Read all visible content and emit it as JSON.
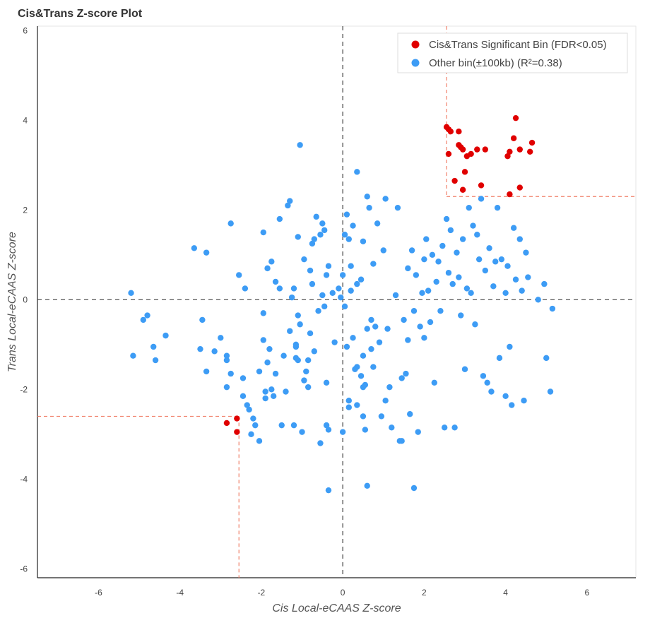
{
  "chart_data": {
    "type": "scatter",
    "title": "Cis&Trans Z-score Plot",
    "xlabel": "Cis Local-eCAAS Z-score",
    "ylabel": "Trans Local-eCAAS Z-score",
    "xlim": [
      -7.5,
      7.2
    ],
    "ylim": [
      -6.2,
      6.1
    ],
    "xticks": [
      "-6",
      "-4",
      "-2",
      "0",
      "2",
      "4",
      "6"
    ],
    "yticks": [
      "6",
      "4",
      "2",
      "0",
      "-2",
      "-4",
      "-6"
    ],
    "grid": false,
    "legend_position": "top-right",
    "thresholds": {
      "upper_x": 2.55,
      "upper_y": 2.3,
      "lower_x": -2.55,
      "lower_y": -2.6
    },
    "series": [
      {
        "name": "Cis&Trans Significant Bin (FDR<0.05)",
        "color": "#e00000",
        "points": [
          [
            2.55,
            3.85
          ],
          [
            2.6,
            3.8
          ],
          [
            2.65,
            3.75
          ],
          [
            2.85,
            3.75
          ],
          [
            2.6,
            3.25
          ],
          [
            2.85,
            3.45
          ],
          [
            2.95,
            3.35
          ],
          [
            3.05,
            3.2
          ],
          [
            3.15,
            3.25
          ],
          [
            3.3,
            3.35
          ],
          [
            3.5,
            3.35
          ],
          [
            2.9,
            3.4
          ],
          [
            2.75,
            2.65
          ],
          [
            3.0,
            2.85
          ],
          [
            2.95,
            2.45
          ],
          [
            3.4,
            2.55
          ],
          [
            4.05,
            3.2
          ],
          [
            4.1,
            3.3
          ],
          [
            4.2,
            3.6
          ],
          [
            4.25,
            4.05
          ],
          [
            4.35,
            3.35
          ],
          [
            4.6,
            3.3
          ],
          [
            4.65,
            3.5
          ],
          [
            4.1,
            2.35
          ],
          [
            4.35,
            2.5
          ],
          [
            -2.85,
            -2.75
          ],
          [
            -2.6,
            -2.65
          ],
          [
            -2.6,
            -2.95
          ]
        ]
      },
      {
        "name": "Other bin(±100kb) (R²=0.38)",
        "color": "#3d9cf5",
        "points": [
          [
            -5.2,
            0.15
          ],
          [
            -5.15,
            -1.25
          ],
          [
            -4.9,
            -0.45
          ],
          [
            -4.8,
            -0.35
          ],
          [
            -4.65,
            -1.05
          ],
          [
            -4.6,
            -1.35
          ],
          [
            -4.35,
            -0.8
          ],
          [
            -3.65,
            1.15
          ],
          [
            -3.5,
            -1.1
          ],
          [
            -3.45,
            -0.45
          ],
          [
            -3.35,
            1.05
          ],
          [
            -3.35,
            -1.6
          ],
          [
            -3.15,
            -1.15
          ],
          [
            -3.0,
            -0.85
          ],
          [
            -2.85,
            -1.25
          ],
          [
            -2.85,
            -1.35
          ],
          [
            -2.85,
            -1.95
          ],
          [
            -2.75,
            1.7
          ],
          [
            -2.75,
            -1.65
          ],
          [
            -2.55,
            0.55
          ],
          [
            -2.45,
            -1.75
          ],
          [
            -2.45,
            -2.15
          ],
          [
            -2.4,
            0.25
          ],
          [
            -2.35,
            -2.35
          ],
          [
            -2.3,
            -2.45
          ],
          [
            -2.25,
            -3.0
          ],
          [
            -2.2,
            -2.65
          ],
          [
            -2.15,
            -2.8
          ],
          [
            -2.05,
            -1.6
          ],
          [
            -1.95,
            1.5
          ],
          [
            -1.95,
            -0.3
          ],
          [
            -1.95,
            -0.9
          ],
          [
            -1.9,
            -2.05
          ],
          [
            -1.9,
            -2.2
          ],
          [
            -1.85,
            0.7
          ],
          [
            -1.85,
            -1.4
          ],
          [
            -1.8,
            -1.1
          ],
          [
            -1.75,
            0.85
          ],
          [
            -1.75,
            -2.0
          ],
          [
            -1.7,
            -2.15
          ],
          [
            -1.65,
            0.4
          ],
          [
            -1.65,
            -1.65
          ],
          [
            -1.55,
            1.8
          ],
          [
            -1.55,
            0.25
          ],
          [
            -1.45,
            -1.25
          ],
          [
            -1.4,
            -2.05
          ],
          [
            -1.35,
            2.1
          ],
          [
            -1.3,
            2.2
          ],
          [
            -1.3,
            -0.7
          ],
          [
            -1.25,
            0.05
          ],
          [
            -1.2,
            0.25
          ],
          [
            -1.2,
            -2.8
          ],
          [
            -1.15,
            -1.05
          ],
          [
            -1.15,
            -1.3
          ],
          [
            -1.1,
            1.4
          ],
          [
            -1.1,
            -0.35
          ],
          [
            -1.1,
            -1.35
          ],
          [
            -1.05,
            3.45
          ],
          [
            -1.05,
            -0.55
          ],
          [
            -1.0,
            -2.95
          ],
          [
            -0.95,
            0.9
          ],
          [
            -0.95,
            -1.8
          ],
          [
            -0.9,
            -1.6
          ],
          [
            -0.85,
            -1.35
          ],
          [
            -0.85,
            -1.95
          ],
          [
            -0.8,
            0.65
          ],
          [
            -0.8,
            -0.75
          ],
          [
            -0.75,
            1.25
          ],
          [
            -0.75,
            0.35
          ],
          [
            -0.7,
            1.35
          ],
          [
            -0.7,
            -1.15
          ],
          [
            -0.65,
            1.85
          ],
          [
            -0.6,
            -0.25
          ],
          [
            -0.55,
            1.45
          ],
          [
            -0.55,
            -3.2
          ],
          [
            -0.5,
            1.7
          ],
          [
            -0.5,
            0.1
          ],
          [
            -0.45,
            1.55
          ],
          [
            -0.45,
            -0.15
          ],
          [
            -0.4,
            0.55
          ],
          [
            -0.4,
            -2.8
          ],
          [
            -0.35,
            0.75
          ],
          [
            -0.35,
            -2.9
          ],
          [
            -0.35,
            -4.25
          ],
          [
            -0.25,
            0.15
          ],
          [
            -0.2,
            -0.95
          ],
          [
            -0.1,
            0.25
          ],
          [
            -0.05,
            0.05
          ],
          [
            0.0,
            0.55
          ],
          [
            0.0,
            -2.95
          ],
          [
            0.05,
            1.45
          ],
          [
            0.05,
            -0.15
          ],
          [
            0.1,
            1.9
          ],
          [
            0.1,
            -1.05
          ],
          [
            0.15,
            1.35
          ],
          [
            0.15,
            -2.4
          ],
          [
            0.2,
            0.75
          ],
          [
            0.2,
            0.2
          ],
          [
            0.25,
            1.65
          ],
          [
            0.25,
            -0.85
          ],
          [
            0.3,
            -1.55
          ],
          [
            0.35,
            2.85
          ],
          [
            0.35,
            0.35
          ],
          [
            0.35,
            -2.35
          ],
          [
            0.45,
            0.45
          ],
          [
            0.45,
            -1.7
          ],
          [
            0.5,
            1.3
          ],
          [
            0.5,
            -1.25
          ],
          [
            0.5,
            -1.95
          ],
          [
            0.5,
            -2.6
          ],
          [
            0.55,
            -2.9
          ],
          [
            0.6,
            2.3
          ],
          [
            0.6,
            -0.65
          ],
          [
            0.6,
            -4.15
          ],
          [
            0.65,
            2.05
          ],
          [
            0.7,
            -0.45
          ],
          [
            0.7,
            -1.1
          ],
          [
            0.75,
            -1.5
          ],
          [
            0.75,
            0.8
          ],
          [
            0.8,
            -0.6
          ],
          [
            0.85,
            1.7
          ],
          [
            0.9,
            -0.95
          ],
          [
            0.95,
            -2.6
          ],
          [
            1.0,
            1.1
          ],
          [
            1.05,
            2.25
          ],
          [
            1.05,
            -2.25
          ],
          [
            1.1,
            -0.65
          ],
          [
            1.15,
            -1.95
          ],
          [
            1.2,
            -2.85
          ],
          [
            1.3,
            0.1
          ],
          [
            1.35,
            2.05
          ],
          [
            1.4,
            -3.15
          ],
          [
            1.45,
            -1.75
          ],
          [
            1.5,
            -0.45
          ],
          [
            1.55,
            -1.65
          ],
          [
            1.6,
            0.7
          ],
          [
            1.6,
            -0.9
          ],
          [
            1.65,
            -2.55
          ],
          [
            1.7,
            1.1
          ],
          [
            1.75,
            -0.25
          ],
          [
            1.8,
            0.55
          ],
          [
            1.85,
            -2.95
          ],
          [
            1.9,
            -0.6
          ],
          [
            1.95,
            0.15
          ],
          [
            2.0,
            0.9
          ],
          [
            2.05,
            1.35
          ],
          [
            2.1,
            0.2
          ],
          [
            2.15,
            -0.5
          ],
          [
            2.2,
            1.0
          ],
          [
            2.25,
            -1.85
          ],
          [
            2.3,
            0.4
          ],
          [
            2.35,
            0.85
          ],
          [
            2.4,
            -0.25
          ],
          [
            2.45,
            1.2
          ],
          [
            2.5,
            -2.85
          ],
          [
            2.55,
            1.8
          ],
          [
            2.6,
            0.6
          ],
          [
            2.65,
            1.55
          ],
          [
            2.7,
            0.35
          ],
          [
            2.75,
            -2.85
          ],
          [
            2.8,
            1.05
          ],
          [
            2.85,
            0.5
          ],
          [
            2.9,
            -0.35
          ],
          [
            2.95,
            1.35
          ],
          [
            3.0,
            -1.55
          ],
          [
            3.05,
            0.25
          ],
          [
            3.1,
            2.05
          ],
          [
            3.15,
            0.15
          ],
          [
            3.2,
            1.65
          ],
          [
            3.25,
            -0.55
          ],
          [
            3.3,
            1.45
          ],
          [
            3.35,
            0.9
          ],
          [
            3.4,
            2.25
          ],
          [
            3.45,
            -1.7
          ],
          [
            3.5,
            0.65
          ],
          [
            3.55,
            -1.85
          ],
          [
            3.6,
            1.15
          ],
          [
            3.65,
            -2.05
          ],
          [
            3.7,
            0.3
          ],
          [
            3.75,
            0.85
          ],
          [
            3.8,
            2.05
          ],
          [
            3.85,
            -1.3
          ],
          [
            3.9,
            0.9
          ],
          [
            4.0,
            0.15
          ],
          [
            4.0,
            -2.15
          ],
          [
            4.05,
            0.75
          ],
          [
            4.1,
            -1.05
          ],
          [
            4.15,
            -2.35
          ],
          [
            4.2,
            1.6
          ],
          [
            4.25,
            0.45
          ],
          [
            4.35,
            1.35
          ],
          [
            4.4,
            0.2
          ],
          [
            4.45,
            -2.25
          ],
          [
            4.5,
            1.05
          ],
          [
            4.55,
            0.5
          ],
          [
            4.8,
            0.0
          ],
          [
            4.95,
            0.35
          ],
          [
            5.0,
            -1.3
          ],
          [
            5.1,
            -2.05
          ],
          [
            5.15,
            -0.2
          ],
          [
            1.75,
            -4.2
          ],
          [
            2.0,
            -0.85
          ],
          [
            0.15,
            -2.25
          ],
          [
            0.55,
            -1.9
          ],
          [
            1.45,
            -3.15
          ],
          [
            -0.4,
            -1.85
          ],
          [
            -1.5,
            -2.8
          ],
          [
            -2.05,
            -3.15
          ],
          [
            -1.15,
            -1.0
          ],
          [
            0.35,
            -1.5
          ]
        ]
      }
    ]
  }
}
